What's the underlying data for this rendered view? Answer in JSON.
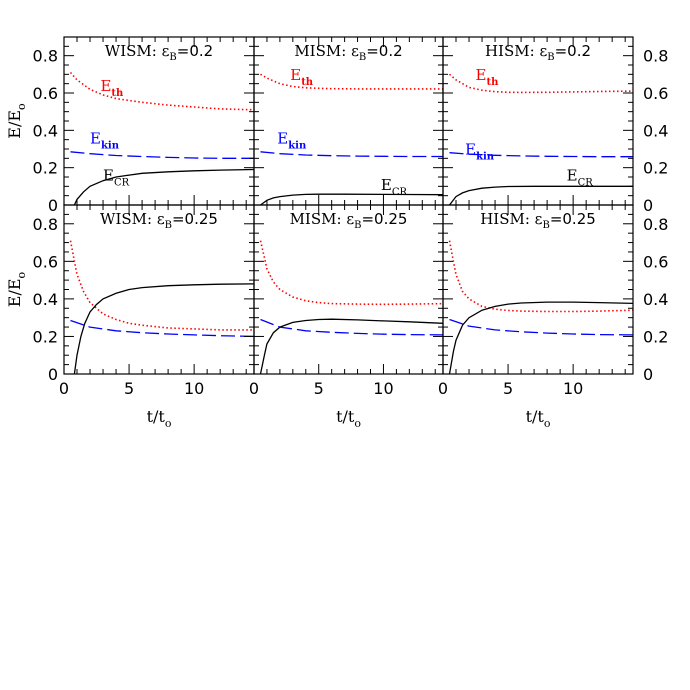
{
  "chart_data": {
    "type": "line",
    "layout": "2x3 grid of panels, shared axes",
    "xlabel": "t/t_o",
    "ylabel": "E/E_o",
    "xlim": [
      0,
      14.6
    ],
    "ylim": [
      0,
      0.9
    ],
    "xticks": [
      0,
      5,
      10
    ],
    "yticks": [
      0,
      0.2,
      0.4,
      0.6,
      0.8
    ],
    "grid": false,
    "series_styles": {
      "E_th": {
        "color": "#ff0000",
        "style": "dotted",
        "label": "E",
        "sub": "th"
      },
      "E_kin": {
        "color": "#0000ff",
        "style": "dashed",
        "label": "E",
        "sub": "kin"
      },
      "E_CR": {
        "color": "#000000",
        "style": "solid",
        "label": "E",
        "sub": "CR"
      }
    },
    "panels": [
      {
        "title": "WISM:",
        "eps": "ε",
        "eps_sub": "B",
        "eps_value": "=0.2",
        "row": 0,
        "col": 0,
        "show_curve_labels": true,
        "labels": {
          "E_th": [
            2.8,
            0.61
          ],
          "E_kin": [
            2.0,
            0.33
          ],
          "E_CR": [
            3.0,
            0.13
          ]
        },
        "series": {
          "E_th": {
            "x": [
              0.5,
              1,
              2,
              3,
              4,
              5,
              6,
              8,
              10,
              12,
              14.6
            ],
            "y": [
              0.71,
              0.67,
              0.62,
              0.59,
              0.57,
              0.56,
              0.55,
              0.535,
              0.525,
              0.515,
              0.51
            ]
          },
          "E_kin": {
            "x": [
              0.5,
              2,
              4,
              6,
              8,
              10,
              12,
              14.6
            ],
            "y": [
              0.285,
              0.275,
              0.265,
              0.26,
              0.255,
              0.252,
              0.25,
              0.25
            ]
          },
          "E_CR": {
            "x": [
              0.8,
              1,
              1.5,
              2,
              3,
              4,
              5,
              6,
              8,
              10,
              12,
              14.6
            ],
            "y": [
              0,
              0.03,
              0.07,
              0.1,
              0.13,
              0.15,
              0.16,
              0.17,
              0.178,
              0.183,
              0.187,
              0.19
            ]
          }
        }
      },
      {
        "title": "MISM:",
        "eps": "ε",
        "eps_sub": "B",
        "eps_value": "=0.2",
        "row": 0,
        "col": 1,
        "show_curve_labels": true,
        "labels": {
          "E_th": [
            2.8,
            0.67
          ],
          "E_kin": [
            1.8,
            0.33
          ],
          "E_CR": [
            9.8,
            0.08
          ]
        },
        "series": {
          "E_th": {
            "x": [
              0.5,
              1,
              2,
              3,
              4,
              5,
              6,
              8,
              10,
              12,
              14.6
            ],
            "y": [
              0.7,
              0.68,
              0.65,
              0.635,
              0.628,
              0.625,
              0.623,
              0.622,
              0.622,
              0.622,
              0.622
            ]
          },
          "E_kin": {
            "x": [
              0.5,
              2,
              4,
              6,
              8,
              10,
              12,
              14.6
            ],
            "y": [
              0.285,
              0.275,
              0.268,
              0.264,
              0.262,
              0.261,
              0.26,
              0.26
            ]
          },
          "E_CR": {
            "x": [
              0.5,
              1,
              1.5,
              2,
              3,
              4,
              5,
              7,
              10,
              12,
              14.6
            ],
            "y": [
              0,
              0.025,
              0.038,
              0.045,
              0.053,
              0.057,
              0.058,
              0.058,
              0.057,
              0.056,
              0.055
            ]
          }
        }
      },
      {
        "title": "HISM:",
        "eps": "ε",
        "eps_sub": "B",
        "eps_value": "=0.2",
        "row": 0,
        "col": 2,
        "show_curve_labels": true,
        "labels": {
          "E_th": [
            2.5,
            0.67
          ],
          "E_kin": [
            1.7,
            0.27
          ],
          "E_CR": [
            9.5,
            0.13
          ]
        },
        "series": {
          "E_th": {
            "x": [
              0.5,
              1,
              2,
              3,
              4,
              5,
              6,
              8,
              10,
              12,
              14.6
            ],
            "y": [
              0.7,
              0.67,
              0.63,
              0.615,
              0.607,
              0.604,
              0.603,
              0.604,
              0.606,
              0.608,
              0.61
            ]
          },
          "E_kin": {
            "x": [
              0.5,
              2,
              4,
              6,
              8,
              10,
              12,
              14.6
            ],
            "y": [
              0.28,
              0.272,
              0.266,
              0.263,
              0.261,
              0.26,
              0.259,
              0.259
            ]
          },
          "E_CR": {
            "x": [
              0.5,
              1,
              1.5,
              2,
              3,
              4,
              5,
              7,
              10,
              12,
              14.6
            ],
            "y": [
              0,
              0.045,
              0.065,
              0.077,
              0.09,
              0.096,
              0.099,
              0.1,
              0.1,
              0.1,
              0.1
            ]
          }
        }
      },
      {
        "title": "WISM:",
        "eps": "ε",
        "eps_sub": "B",
        "eps_value": "=0.25",
        "row": 1,
        "col": 0,
        "show_curve_labels": false,
        "series": {
          "E_th": {
            "x": [
              0.5,
              0.8,
              1,
              1.5,
              2,
              3,
              4,
              5,
              6,
              8,
              10,
              12,
              14.6
            ],
            "y": [
              0.71,
              0.6,
              0.53,
              0.44,
              0.38,
              0.32,
              0.29,
              0.27,
              0.26,
              0.245,
              0.24,
              0.235,
              0.235
            ]
          },
          "E_kin": {
            "x": [
              0.5,
              2,
              4,
              6,
              8,
              10,
              12,
              14.6
            ],
            "y": [
              0.285,
              0.25,
              0.23,
              0.22,
              0.213,
              0.208,
              0.204,
              0.2
            ]
          },
          "E_CR": {
            "x": [
              0.8,
              1,
              1.3,
              1.6,
              2,
              2.5,
              3,
              4,
              5,
              6,
              8,
              10,
              12,
              14.6
            ],
            "y": [
              0,
              0.1,
              0.2,
              0.27,
              0.33,
              0.37,
              0.4,
              0.43,
              0.45,
              0.46,
              0.47,
              0.475,
              0.478,
              0.48
            ]
          }
        }
      },
      {
        "title": "MISM:",
        "eps": "ε",
        "eps_sub": "B",
        "eps_value": "=0.25",
        "row": 1,
        "col": 1,
        "show_curve_labels": false,
        "series": {
          "E_th": {
            "x": [
              0.5,
              0.8,
              1,
              1.5,
              2,
              3,
              4,
              5,
              6,
              8,
              10,
              12,
              14.6
            ],
            "y": [
              0.71,
              0.62,
              0.56,
              0.49,
              0.45,
              0.41,
              0.39,
              0.38,
              0.375,
              0.372,
              0.371,
              0.372,
              0.375
            ]
          },
          "E_kin": {
            "x": [
              0.5,
              2,
              4,
              6,
              8,
              10,
              12,
              14.6
            ],
            "y": [
              0.29,
              0.25,
              0.23,
              0.222,
              0.216,
              0.212,
              0.21,
              0.208
            ]
          },
          "E_CR": {
            "x": [
              0.5,
              0.8,
              1,
              1.5,
              2,
              3,
              4,
              5,
              6,
              8,
              10,
              12,
              14.6
            ],
            "y": [
              0,
              0.1,
              0.16,
              0.22,
              0.25,
              0.275,
              0.285,
              0.29,
              0.292,
              0.288,
              0.283,
              0.278,
              0.27
            ]
          }
        }
      },
      {
        "title": "HISM:",
        "eps": "ε",
        "eps_sub": "B",
        "eps_value": "=0.25",
        "row": 1,
        "col": 2,
        "show_curve_labels": false,
        "series": {
          "E_th": {
            "x": [
              0.5,
              0.8,
              1,
              1.5,
              2,
              3,
              4,
              5,
              6,
              8,
              10,
              12,
              14.6
            ],
            "y": [
              0.71,
              0.6,
              0.53,
              0.44,
              0.4,
              0.36,
              0.345,
              0.338,
              0.335,
              0.333,
              0.333,
              0.335,
              0.34
            ]
          },
          "E_kin": {
            "x": [
              0.5,
              2,
              4,
              6,
              8,
              10,
              12,
              14.6
            ],
            "y": [
              0.29,
              0.255,
              0.235,
              0.225,
              0.218,
              0.213,
              0.21,
              0.208
            ]
          },
          "E_CR": {
            "x": [
              0.5,
              0.8,
              1,
              1.5,
              2,
              3,
              4,
              5,
              6,
              8,
              10,
              12,
              14.6
            ],
            "y": [
              0,
              0.12,
              0.18,
              0.26,
              0.3,
              0.34,
              0.36,
              0.372,
              0.378,
              0.383,
              0.383,
              0.38,
              0.376
            ]
          }
        }
      }
    ]
  },
  "axes": {
    "y_tick_labels": [
      "0",
      "0.2",
      "0.4",
      "0.6",
      "0.8"
    ],
    "x_tick_labels": [
      "0",
      "5",
      "10"
    ],
    "ylabel_main": "E/E",
    "ylabel_sub": "o",
    "xlabel_main": "t/t",
    "xlabel_sub": "o"
  }
}
